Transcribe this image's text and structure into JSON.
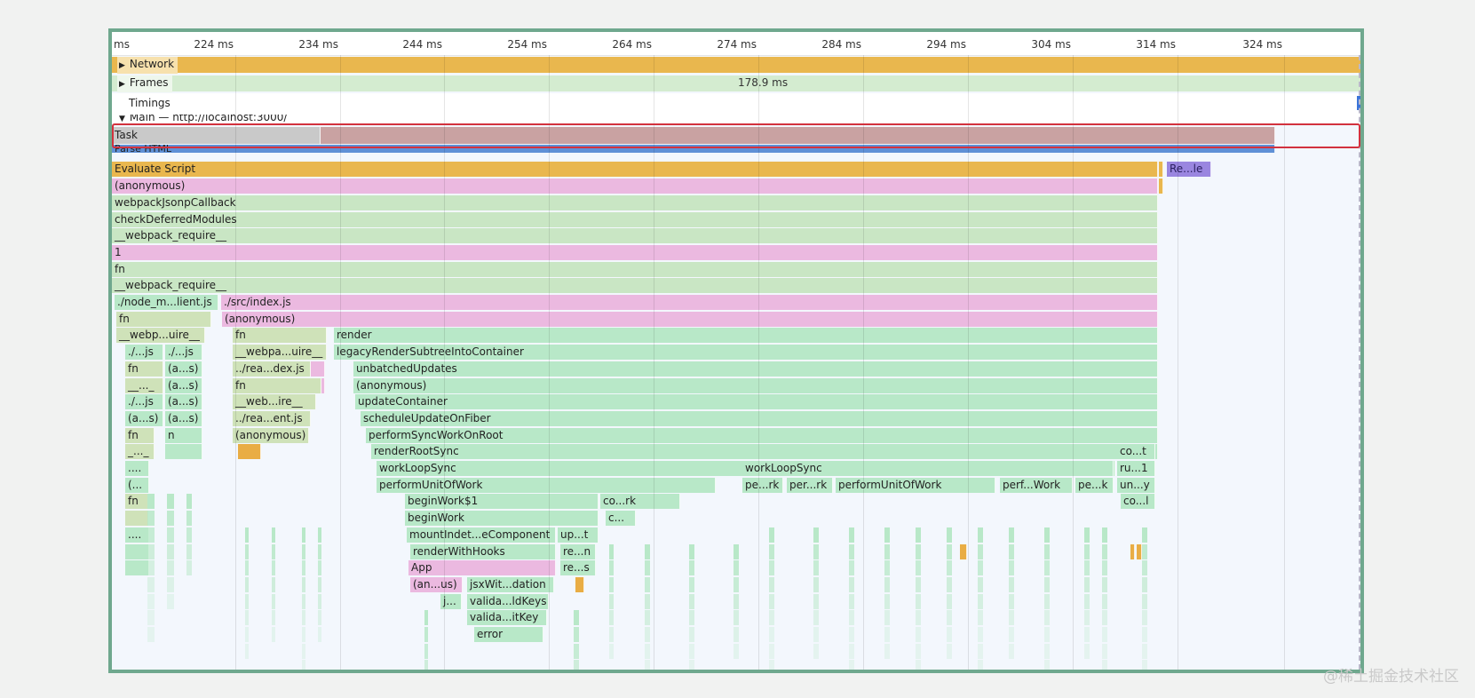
{
  "ruler": {
    "ticks": [
      "ms",
      "224 ms",
      "234 ms",
      "244 ms",
      "254 ms",
      "264 ms",
      "274 ms",
      "284 ms",
      "294 ms",
      "304 ms",
      "314 ms",
      "324 ms"
    ]
  },
  "tracks": {
    "network": {
      "label": "Network",
      "expand_icon": "triangle-right-icon"
    },
    "frames": {
      "label": "Frames",
      "expand_icon": "triangle-right-icon",
      "frame_duration": "178.9 ms"
    },
    "timings": {
      "label": "Timings"
    },
    "main": {
      "label": "Main — http://localhost:3000/",
      "expand_icon": "triangle-down-icon"
    }
  },
  "colors": {
    "network": "#e9b74e",
    "frames": "#d4ecd0",
    "task_gray": "#c9c9c9",
    "task_red": "#c9a2a2",
    "parse_html": "#5f90d6",
    "evaluate_script": "#e9b74e",
    "pink": "#ebb9e0",
    "green": "#c9e6c4",
    "mint": "#b8e8c8",
    "olive": "#cfe2b9",
    "purple": "#9a86e0",
    "orange": "#e9ad44",
    "highlight": "#d2323e"
  },
  "flame": {
    "rows": [
      [
        {
          "label": "Task",
          "c": "task_gray",
          "s": 0,
          "e": 235,
          "cls": "task"
        },
        {
          "label": "",
          "c": "task_red",
          "s": 235,
          "e": 1310
        }
      ],
      [
        {
          "label": "Parse HTML",
          "c": "parse_html",
          "s": 0,
          "e": 1310
        }
      ],
      [
        {
          "label": "Evaluate Script",
          "c": "evaluate_script",
          "s": 0,
          "e": 1178
        },
        {
          "label": "",
          "c": "evaluate_script",
          "s": 1179,
          "e": 1184
        },
        {
          "label": "Re...le",
          "c": "purple",
          "s": 1188,
          "e": 1238
        }
      ],
      [
        {
          "label": "(anonymous)",
          "c": "pink",
          "s": 0,
          "e": 1178
        },
        {
          "label": "",
          "c": "evaluate_script",
          "s": 1179,
          "e": 1184
        }
      ],
      [
        {
          "label": "webpackJsonpCallback",
          "c": "green",
          "s": 0,
          "e": 1178
        }
      ],
      [
        {
          "label": "checkDeferredModules",
          "c": "green",
          "s": 0,
          "e": 1178
        }
      ],
      [
        {
          "label": "__webpack_require__",
          "c": "green",
          "s": 0,
          "e": 1178
        }
      ],
      [
        {
          "label": "1",
          "c": "pink",
          "s": 0,
          "e": 1178
        }
      ],
      [
        {
          "label": "fn",
          "c": "green",
          "s": 0,
          "e": 1178
        }
      ],
      [
        {
          "label": "__webpack_require__",
          "c": "green",
          "s": 0,
          "e": 1178
        }
      ],
      [
        {
          "label": "./node_m...lient.js",
          "c": "mint",
          "s": 3,
          "e": 120
        },
        {
          "label": "./src/index.js",
          "c": "pink",
          "s": 123,
          "e": 1178
        }
      ],
      [
        {
          "label": "fn",
          "c": "olive",
          "s": 5,
          "e": 112
        },
        {
          "label": "(anonymous)",
          "c": "pink",
          "s": 124,
          "e": 1178
        }
      ],
      [
        {
          "label": "__webp...uire__",
          "c": "olive",
          "s": 5,
          "e": 105
        },
        {
          "label": "fn",
          "c": "olive",
          "s": 136,
          "e": 242
        },
        {
          "label": "render",
          "c": "mint",
          "s": 250,
          "e": 1178
        }
      ],
      [
        {
          "label": "./...js",
          "c": "mint",
          "s": 15,
          "e": 58
        },
        {
          "label": "./...js",
          "c": "mint",
          "s": 60,
          "e": 102
        },
        {
          "label": "__webpa...uire__",
          "c": "olive",
          "s": 136,
          "e": 242
        },
        {
          "label": "legacyRenderSubtreeIntoContainer",
          "c": "mint",
          "s": 250,
          "e": 1178
        }
      ],
      [
        {
          "label": "fn",
          "c": "olive",
          "s": 15,
          "e": 58
        },
        {
          "label": "(a...s)",
          "c": "mint",
          "s": 60,
          "e": 102
        },
        {
          "label": "../rea...dex.js",
          "c": "olive",
          "s": 136,
          "e": 224
        },
        {
          "label": "",
          "c": "pink",
          "s": 224,
          "e": 240
        },
        {
          "label": "unbatchedUpdates",
          "c": "mint",
          "s": 272,
          "e": 1178
        }
      ],
      [
        {
          "label": "__..._",
          "c": "olive",
          "s": 15,
          "e": 58
        },
        {
          "label": "(a...s)",
          "c": "mint",
          "s": 60,
          "e": 102
        },
        {
          "label": "fn",
          "c": "olive",
          "s": 136,
          "e": 236
        },
        {
          "label": "",
          "c": "pink",
          "s": 236,
          "e": 240
        },
        {
          "label": "(anonymous)",
          "c": "mint",
          "s": 272,
          "e": 1178
        }
      ],
      [
        {
          "label": "./...js",
          "c": "mint",
          "s": 15,
          "e": 58
        },
        {
          "label": "(a...s)",
          "c": "mint",
          "s": 60,
          "e": 102
        },
        {
          "label": "__web...ire__",
          "c": "olive",
          "s": 136,
          "e": 230
        },
        {
          "label": "updateContainer",
          "c": "mint",
          "s": 274,
          "e": 1178
        }
      ],
      [
        {
          "label": "(a...s)",
          "c": "mint",
          "s": 15,
          "e": 58
        },
        {
          "label": "(a...s)",
          "c": "mint",
          "s": 60,
          "e": 102
        },
        {
          "label": "../rea...ent.js",
          "c": "olive",
          "s": 136,
          "e": 224
        },
        {
          "label": "scheduleUpdateOnFiber",
          "c": "mint",
          "s": 280,
          "e": 1178
        }
      ],
      [
        {
          "label": "fn",
          "c": "olive",
          "s": 15,
          "e": 48
        },
        {
          "label": "n",
          "c": "mint",
          "s": 60,
          "e": 102
        },
        {
          "label": "(anonymous)",
          "c": "olive",
          "s": 136,
          "e": 222
        },
        {
          "label": "performSyncWorkOnRoot",
          "c": "mint",
          "s": 286,
          "e": 1178
        }
      ],
      [
        {
          "label": "_..._",
          "c": "olive",
          "s": 15,
          "e": 48
        },
        {
          "label": "",
          "c": "mint",
          "s": 60,
          "e": 102
        },
        {
          "label": "",
          "c": "orange",
          "s": 142,
          "e": 168
        },
        {
          "label": "renderRootSync",
          "c": "mint",
          "s": 292,
          "e": 1178
        },
        {
          "label": "co...t",
          "c": "mint",
          "s": 1132,
          "e": 1175
        }
      ],
      [
        {
          "label": "....",
          "c": "mint",
          "s": 15,
          "e": 42
        },
        {
          "label": "workLoopSync",
          "c": "mint",
          "s": 298,
          "e": 1130
        },
        {
          "label": "workLoopSync",
          "c": "mint",
          "s": 710,
          "e": 1128
        },
        {
          "label": "ru...1",
          "c": "mint",
          "s": 1132,
          "e": 1175
        }
      ],
      [
        {
          "label": "(...",
          "c": "mint",
          "s": 15,
          "e": 42
        },
        {
          "label": "performUnitOfWork",
          "c": "mint",
          "s": 298,
          "e": 680
        },
        {
          "label": "pe...rk",
          "c": "mint",
          "s": 710,
          "e": 756
        },
        {
          "label": "per...rk",
          "c": "mint",
          "s": 760,
          "e": 812
        },
        {
          "label": "performUnitOfWork",
          "c": "mint",
          "s": 815,
          "e": 995
        },
        {
          "label": "perf...Work",
          "c": "mint",
          "s": 1000,
          "e": 1082
        },
        {
          "label": "pe...k",
          "c": "mint",
          "s": 1085,
          "e": 1128
        },
        {
          "label": "un...y",
          "c": "mint",
          "s": 1132,
          "e": 1175
        }
      ],
      [
        {
          "label": "fn",
          "c": "olive",
          "s": 15,
          "e": 42
        },
        {
          "label": "beginWork$1",
          "c": "mint",
          "s": 330,
          "e": 548
        },
        {
          "label": "co...rk",
          "c": "mint",
          "s": 550,
          "e": 640
        },
        {
          "label": "co...l",
          "c": "mint",
          "s": 1136,
          "e": 1175
        }
      ],
      [
        {
          "label": "",
          "c": "olive",
          "s": 15,
          "e": 42
        },
        {
          "label": "beginWork",
          "c": "mint",
          "s": 330,
          "e": 548
        },
        {
          "label": "c...",
          "c": "mint",
          "s": 556,
          "e": 590
        }
      ],
      [
        {
          "label": "....",
          "c": "mint",
          "s": 15,
          "e": 42
        },
        {
          "label": "mountIndet...eComponent",
          "c": "mint",
          "s": 332,
          "e": 500
        },
        {
          "label": "up...t",
          "c": "mint",
          "s": 502,
          "e": 548
        }
      ],
      [
        {
          "label": "",
          "c": "mint",
          "s": 15,
          "e": 42
        },
        {
          "label": "renderWithHooks",
          "c": "mint",
          "s": 336,
          "e": 500
        },
        {
          "label": "re...n",
          "c": "mint",
          "s": 505,
          "e": 545
        },
        {
          "label": "",
          "c": "orange",
          "s": 955,
          "e": 963
        },
        {
          "label": "",
          "c": "orange",
          "s": 1147,
          "e": 1152
        },
        {
          "label": "",
          "c": "orange",
          "s": 1154,
          "e": 1160
        }
      ],
      [
        {
          "label": "",
          "c": "mint",
          "s": 15,
          "e": 42
        },
        {
          "label": "App",
          "c": "pink",
          "s": 334,
          "e": 500
        },
        {
          "label": "re...s",
          "c": "mint",
          "s": 505,
          "e": 545
        }
      ],
      [
        {
          "label": "(an...us)",
          "c": "pink",
          "s": 336,
          "e": 395
        },
        {
          "label": "jsxWit...dation",
          "c": "mint",
          "s": 400,
          "e": 498
        },
        {
          "label": "",
          "c": "orange",
          "s": 522,
          "e": 532
        }
      ],
      [
        {
          "label": "j...",
          "c": "mint",
          "s": 370,
          "e": 394
        },
        {
          "label": "valida...ldKeys",
          "c": "mint",
          "s": 400,
          "e": 492
        }
      ],
      [
        {
          "label": "valida...itKey",
          "c": "mint",
          "s": 400,
          "e": 490
        }
      ],
      [
        {
          "label": "error",
          "c": "mint",
          "s": 408,
          "e": 486
        }
      ]
    ]
  },
  "watermark": "@稀土掘金技术社区"
}
